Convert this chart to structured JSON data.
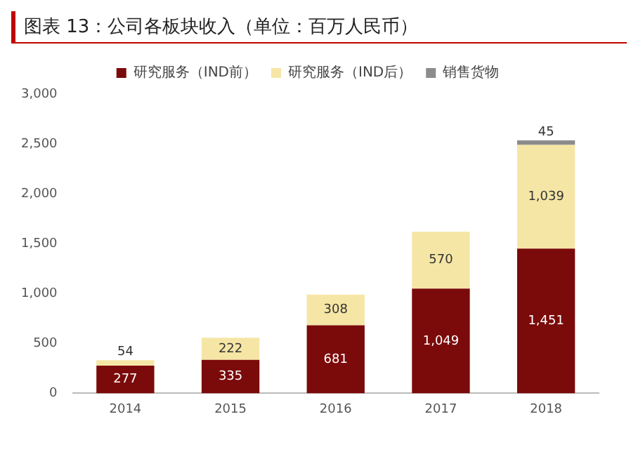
{
  "chart_data": {
    "type": "bar",
    "title": "图表 13：公司各板块收入（单位：百万人民币）",
    "categories": [
      "2014",
      "2015",
      "2016",
      "2017",
      "2018"
    ],
    "stacked": true,
    "series": [
      {
        "name": "研究服务（IND前）",
        "color": "#7b0a0a",
        "values": [
          277,
          335,
          681,
          1049,
          1451
        ],
        "value_labels": [
          "277",
          "335",
          "681",
          "1,049",
          "1,451"
        ]
      },
      {
        "name": "研究服务（IND后）",
        "color": "#f6e6a6",
        "values": [
          54,
          222,
          308,
          570,
          1039
        ],
        "value_labels": [
          "54",
          "222",
          "308",
          "570",
          "1,039"
        ]
      },
      {
        "name": "销售货物",
        "color": "#8c8c8c",
        "values": [
          null,
          null,
          null,
          null,
          45
        ],
        "value_labels": [
          null,
          null,
          null,
          null,
          "45"
        ]
      }
    ],
    "ylim": [
      0,
      3000
    ],
    "yticks": [
      {
        "value": 0,
        "label": "0"
      },
      {
        "value": 500,
        "label": "500"
      },
      {
        "value": 1000,
        "label": "1,000"
      },
      {
        "value": 1500,
        "label": "1,500"
      },
      {
        "value": 2000,
        "label": "2,000"
      },
      {
        "value": 2500,
        "label": "2,500"
      },
      {
        "value": 3000,
        "label": "3,000"
      }
    ],
    "grid": false,
    "legend": "top"
  }
}
